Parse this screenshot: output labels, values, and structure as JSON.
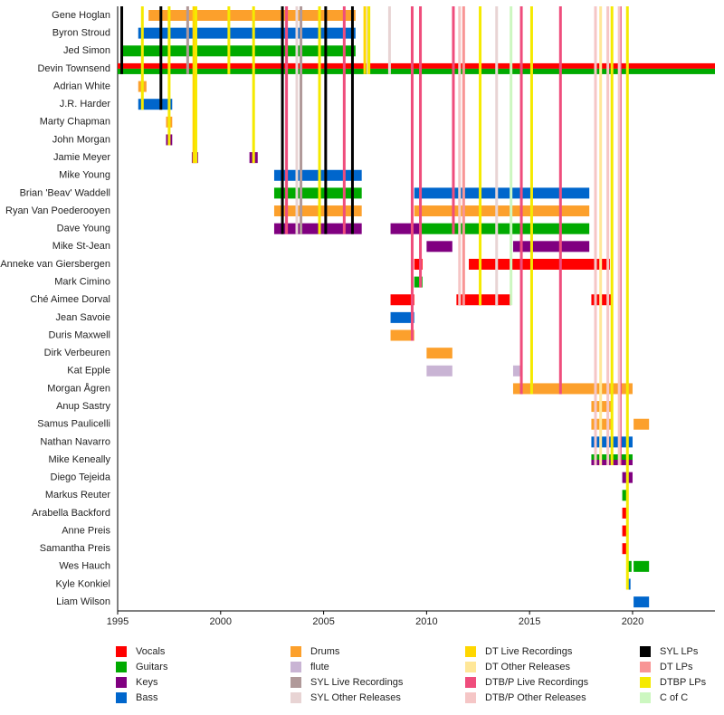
{
  "chart_data": {
    "type": "timeline",
    "xlim": [
      1995,
      2024
    ],
    "xticks": [
      1995,
      2000,
      2005,
      2010,
      2015,
      2020
    ],
    "roles": [
      {
        "name": "Vocals",
        "color": "#ff0000"
      },
      {
        "name": "Guitars",
        "color": "#00aa00"
      },
      {
        "name": "Keys",
        "color": "#800080"
      },
      {
        "name": "Bass",
        "color": "#0066cc"
      },
      {
        "name": "Drums",
        "color": "#fca02c"
      },
      {
        "name": "flute",
        "color": "#c9b4d4"
      },
      {
        "name": "SYL Live Recordings",
        "color": "#b09999"
      },
      {
        "name": "SYL Other Releases",
        "color": "#e8d4d4"
      },
      {
        "name": "DT Live Recordings",
        "color": "#ffd700"
      },
      {
        "name": "DT Other Releases",
        "color": "#ffe798"
      },
      {
        "name": "DTB/P Live Recordings",
        "color": "#ef4d7c"
      },
      {
        "name": "DTB/P Other Releases",
        "color": "#f5c6c6"
      },
      {
        "name": "SYL LPs",
        "color": "#000000"
      },
      {
        "name": "DT LPs",
        "color": "#f89595"
      },
      {
        "name": "DTBP LPs",
        "color": "#f5ea00"
      },
      {
        "name": "C of C",
        "color": "#ccf7c0"
      }
    ],
    "members": [
      {
        "name": "Gene Hoglan",
        "spans": [
          {
            "role": "Drums",
            "start": 1996.5,
            "end": 2006.55
          }
        ]
      },
      {
        "name": "Byron Stroud",
        "spans": [
          {
            "role": "Bass",
            "start": 1996.0,
            "end": 2006.55
          }
        ]
      },
      {
        "name": "Jed Simon",
        "spans": [
          {
            "role": "Guitars",
            "start": 1995.25,
            "end": 2006.55
          }
        ]
      },
      {
        "name": "Devin Townsend",
        "spans": [
          {
            "role": "Vocals",
            "start": 1995,
            "end": 2024
          },
          {
            "role": "Guitars",
            "start": 1995,
            "end": 2024
          }
        ]
      },
      {
        "name": "Adrian White",
        "spans": [
          {
            "role": "Drums",
            "start": 1996.0,
            "end": 1996.4
          }
        ]
      },
      {
        "name": "J.R. Harder",
        "spans": [
          {
            "role": "Bass",
            "start": 1996.0,
            "end": 1997.65
          }
        ]
      },
      {
        "name": "Marty Chapman",
        "spans": [
          {
            "role": "Drums",
            "start": 1997.35,
            "end": 1997.65
          }
        ]
      },
      {
        "name": "John Morgan",
        "spans": [
          {
            "role": "Keys",
            "start": 1997.35,
            "end": 1997.65
          }
        ]
      },
      {
        "name": "Jamie Meyer",
        "spans": [
          {
            "role": "Keys",
            "start": 1998.6,
            "end": 1998.9
          },
          {
            "role": "Keys",
            "start": 2001.4,
            "end": 2001.8
          }
        ]
      },
      {
        "name": "Mike Young",
        "spans": [
          {
            "role": "Bass",
            "start": 2002.6,
            "end": 2006.85
          }
        ]
      },
      {
        "name": "Brian 'Beav' Waddell",
        "spans": [
          {
            "role": "Guitars",
            "start": 2002.6,
            "end": 2006.85
          },
          {
            "role": "Bass",
            "start": 2009.4,
            "end": 2017.9
          }
        ]
      },
      {
        "name": "Ryan Van Poederooyen",
        "spans": [
          {
            "role": "Drums",
            "start": 2002.6,
            "end": 2006.85
          },
          {
            "role": "Drums",
            "start": 2009.4,
            "end": 2017.9
          }
        ]
      },
      {
        "name": "Dave Young",
        "spans": [
          {
            "role": "Keys",
            "start": 2002.6,
            "end": 2006.85
          },
          {
            "role": "Keys",
            "start": 2008.25,
            "end": 2009.7
          },
          {
            "role": "Guitars",
            "start": 2009.7,
            "end": 2017.9
          }
        ]
      },
      {
        "name": "Mike St-Jean",
        "spans": [
          {
            "role": "Keys",
            "start": 2010.0,
            "end": 2011.25
          },
          {
            "role": "Keys",
            "start": 2014.2,
            "end": 2017.9
          }
        ]
      },
      {
        "name": "Anneke van Giersbergen",
        "spans": [
          {
            "role": "Vocals",
            "start": 2009.4,
            "end": 2009.8
          },
          {
            "role": "Vocals",
            "start": 2012.05,
            "end": 2018.9
          }
        ]
      },
      {
        "name": "Mark Cimino",
        "spans": [
          {
            "role": "Guitars",
            "start": 2009.4,
            "end": 2009.8
          }
        ]
      },
      {
        "name": "Ché Aimee Dorval",
        "spans": [
          {
            "role": "Vocals",
            "start": 2008.25,
            "end": 2009.4
          },
          {
            "role": "Vocals",
            "start": 2011.45,
            "end": 2014.1
          },
          {
            "role": "Vocals",
            "start": 2018.0,
            "end": 2019.0
          }
        ]
      },
      {
        "name": "Jean Savoie",
        "spans": [
          {
            "role": "Bass",
            "start": 2008.25,
            "end": 2009.4
          }
        ]
      },
      {
        "name": "Duris Maxwell",
        "spans": [
          {
            "role": "Drums",
            "start": 2008.25,
            "end": 2009.4
          }
        ]
      },
      {
        "name": "Dirk Verbeuren",
        "spans": [
          {
            "role": "Drums",
            "start": 2010.0,
            "end": 2011.25
          }
        ]
      },
      {
        "name": "Kat Epple",
        "spans": [
          {
            "role": "flute",
            "start": 2010.0,
            "end": 2011.25
          },
          {
            "role": "flute",
            "start": 2014.2,
            "end": 2014.55
          }
        ]
      },
      {
        "name": "Morgan Ågren",
        "spans": [
          {
            "role": "Drums",
            "start": 2014.2,
            "end": 2020.0
          }
        ]
      },
      {
        "name": "Anup Sastry",
        "spans": [
          {
            "role": "Drums",
            "start": 2018.0,
            "end": 2019.0
          }
        ]
      },
      {
        "name": "Samus Paulicelli",
        "spans": [
          {
            "role": "Drums",
            "start": 2018.0,
            "end": 2019.0
          },
          {
            "role": "Drums",
            "start": 2020.05,
            "end": 2020.8
          }
        ]
      },
      {
        "name": "Nathan Navarro",
        "spans": [
          {
            "role": "Bass",
            "start": 2018.0,
            "end": 2020.0
          }
        ]
      },
      {
        "name": "Mike Keneally",
        "spans": [
          {
            "role": "Guitars",
            "start": 2018.0,
            "end": 2020.0
          },
          {
            "role": "Keys",
            "start": 2018.0,
            "end": 2020.0
          }
        ]
      },
      {
        "name": "Diego Tejeida",
        "spans": [
          {
            "role": "Keys",
            "start": 2019.5,
            "end": 2020.0
          }
        ]
      },
      {
        "name": "Markus Reuter",
        "spans": [
          {
            "role": "Guitars",
            "start": 2019.5,
            "end": 2019.75
          }
        ]
      },
      {
        "name": "Arabella Backford",
        "spans": [
          {
            "role": "Vocals",
            "start": 2019.5,
            "end": 2019.75
          }
        ]
      },
      {
        "name": "Anne Preis",
        "spans": [
          {
            "role": "Vocals",
            "start": 2019.5,
            "end": 2019.75
          }
        ]
      },
      {
        "name": "Samantha Preis",
        "spans": [
          {
            "role": "Vocals",
            "start": 2019.5,
            "end": 2019.75
          }
        ]
      },
      {
        "name": "Wes Hauch",
        "spans": [
          {
            "role": "Guitars",
            "start": 2019.75,
            "end": 2019.95
          },
          {
            "role": "Guitars",
            "start": 2020.05,
            "end": 2020.8
          }
        ]
      },
      {
        "name": "Kyle Konkiel",
        "spans": [
          {
            "role": "Bass",
            "start": 2019.75,
            "end": 2019.9
          }
        ]
      },
      {
        "name": "Liam Wilson",
        "spans": [
          {
            "role": "Bass",
            "start": 2020.05,
            "end": 2020.8
          }
        ]
      }
    ],
    "releases": [
      {
        "type": "SYL LPs",
        "year": 1995.2
      },
      {
        "type": "SYL LPs",
        "year": 1997.1
      },
      {
        "type": "SYL LPs",
        "year": 2003.0
      },
      {
        "type": "SYL LPs",
        "year": 2005.1
      },
      {
        "type": "SYL LPs",
        "year": 2006.4
      },
      {
        "type": "SYL Live Recordings",
        "year": 1998.4
      },
      {
        "type": "SYL Live Recordings",
        "year": 2003.9
      },
      {
        "type": "SYL Other Releases",
        "year": 2003.7
      },
      {
        "type": "SYL Other Releases",
        "year": 2007.15
      },
      {
        "type": "SYL Other Releases",
        "year": 2008.2
      },
      {
        "type": "SYL Other Releases",
        "year": 2013.4
      },
      {
        "type": "DT Live Recordings",
        "year": 1998.7
      },
      {
        "type": "DT Live Recordings",
        "year": 2007.0
      },
      {
        "type": "DT Other Releases",
        "year": 2018.45
      },
      {
        "type": "DTB/P Live Recordings",
        "year": 2003.2
      },
      {
        "type": "DTB/P Live Recordings",
        "year": 2006.0
      },
      {
        "type": "DTB/P Live Recordings",
        "year": 2009.3
      },
      {
        "type": "DTB/P Live Recordings",
        "year": 2009.7
      },
      {
        "type": "DTB/P Live Recordings",
        "year": 2011.3
      },
      {
        "type": "DTB/P Live Recordings",
        "year": 2014.6
      },
      {
        "type": "DTB/P Live Recordings",
        "year": 2016.5
      },
      {
        "type": "DTB/P Live Recordings",
        "year": 2019.4
      },
      {
        "type": "DTB/P Other Releases",
        "year": 2011.6
      },
      {
        "type": "DTB/P Other Releases",
        "year": 2018.2
      },
      {
        "type": "DTB/P Other Releases",
        "year": 2018.8
      },
      {
        "type": "DTB/P Other Releases",
        "year": 2019.35
      },
      {
        "type": "DT LPs",
        "year": 2011.8
      },
      {
        "type": "DTBP LPs",
        "year": 1996.2
      },
      {
        "type": "DTBP LPs",
        "year": 1997.5
      },
      {
        "type": "DTBP LPs",
        "year": 1998.8
      },
      {
        "type": "DTBP LPs",
        "year": 2000.4
      },
      {
        "type": "DTBP LPs",
        "year": 2001.6
      },
      {
        "type": "DTBP LPs",
        "year": 2004.8
      },
      {
        "type": "DTBP LPs",
        "year": 2007.2
      },
      {
        "type": "DTBP LPs",
        "year": 2012.6
      },
      {
        "type": "DTBP LPs",
        "year": 2015.1
      },
      {
        "type": "DTBP LPs",
        "year": 2019.0
      },
      {
        "type": "DTBP LPs",
        "year": 2019.75
      },
      {
        "type": "C of C",
        "year": 2014.1
      }
    ]
  }
}
